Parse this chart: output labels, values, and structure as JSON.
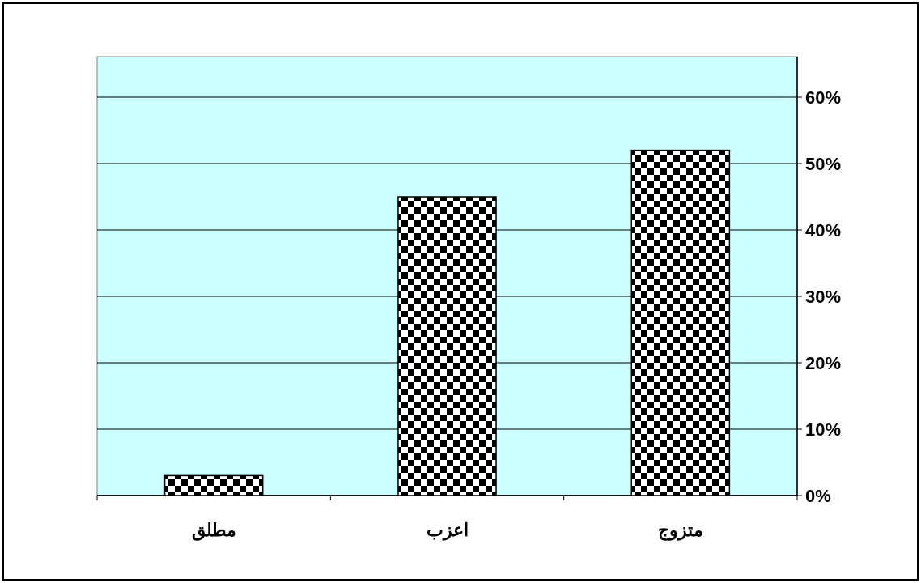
{
  "chart_data": {
    "type": "bar",
    "categories": [
      "مطلق",
      "اعزب",
      "متزوج"
    ],
    "values": [
      3,
      45,
      52
    ],
    "color": "#000000",
    "ylim": [
      0,
      60
    ],
    "yticks": [
      {
        "value": 0,
        "label": "0%"
      },
      {
        "value": 10,
        "label": "10%"
      },
      {
        "value": 20,
        "label": "20%"
      },
      {
        "value": 30,
        "label": "30%"
      },
      {
        "value": 40,
        "label": "40%"
      },
      {
        "value": 50,
        "label": "50%"
      },
      {
        "value": 60,
        "label": "60%"
      }
    ],
    "grid": "y"
  }
}
